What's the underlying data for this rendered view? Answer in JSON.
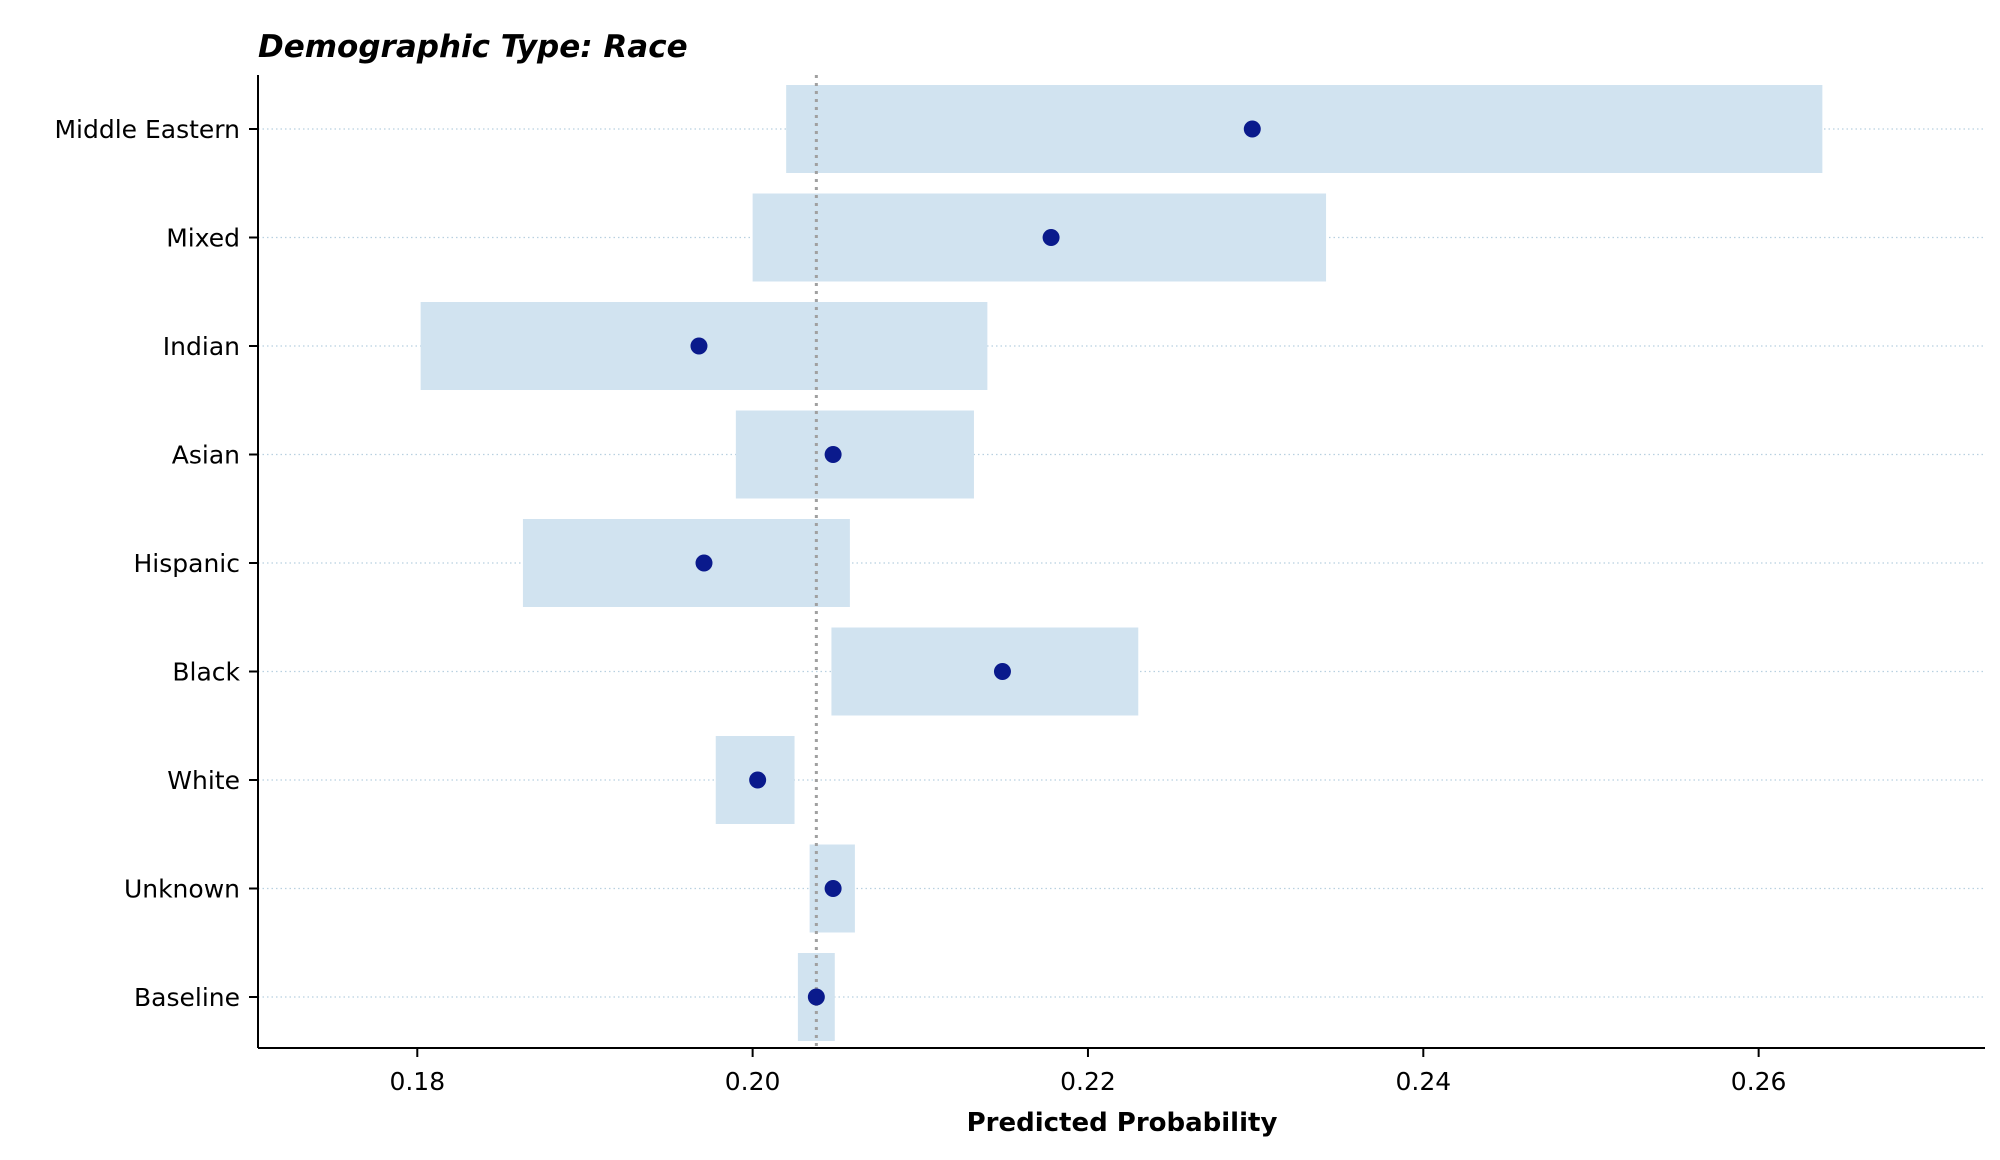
{
  "chart_data": {
    "type": "scatter",
    "title": "Demographic Type: Race",
    "xlabel": "Predicted Probability",
    "ylabel": "",
    "xlim": [
      0.1705,
      0.2735
    ],
    "xticks": [
      0.18,
      0.2,
      0.22,
      0.24,
      0.26
    ],
    "xtick_labels": [
      "0.18",
      "0.20",
      "0.22",
      "0.24",
      "0.26"
    ],
    "baseline_reference": 0.2038,
    "categories": [
      "Middle Eastern",
      "Mixed",
      "Indian",
      "Asian",
      "Hispanic",
      "Black",
      "White",
      "Unknown",
      "Baseline"
    ],
    "points": [
      {
        "category": "Middle Eastern",
        "value": 0.2298,
        "ci": [
          0.202,
          0.2638
        ]
      },
      {
        "category": "Mixed",
        "value": 0.2178,
        "ci": [
          0.2,
          0.2342
        ]
      },
      {
        "category": "Indian",
        "value": 0.1968,
        "ci": [
          0.1802,
          0.214
        ]
      },
      {
        "category": "Asian",
        "value": 0.2048,
        "ci": [
          0.199,
          0.2132
        ]
      },
      {
        "category": "Hispanic",
        "value": 0.1971,
        "ci": [
          0.1863,
          0.2058
        ]
      },
      {
        "category": "Black",
        "value": 0.2149,
        "ci": [
          0.2047,
          0.223
        ]
      },
      {
        "category": "White",
        "value": 0.2003,
        "ci": [
          0.1978,
          0.2025
        ]
      },
      {
        "category": "Unknown",
        "value": 0.2048,
        "ci": [
          0.2034,
          0.2061
        ]
      },
      {
        "category": "Baseline",
        "value": 0.2038,
        "ci": [
          0.2027,
          0.2049
        ]
      }
    ],
    "colors": {
      "point": "#0a1a8c",
      "interval": "#d1e3f0",
      "reference_line": "#a0a0a0",
      "row_grid": "#b8d0e0"
    },
    "grid": "horizontal-dotted",
    "legend": "none"
  }
}
